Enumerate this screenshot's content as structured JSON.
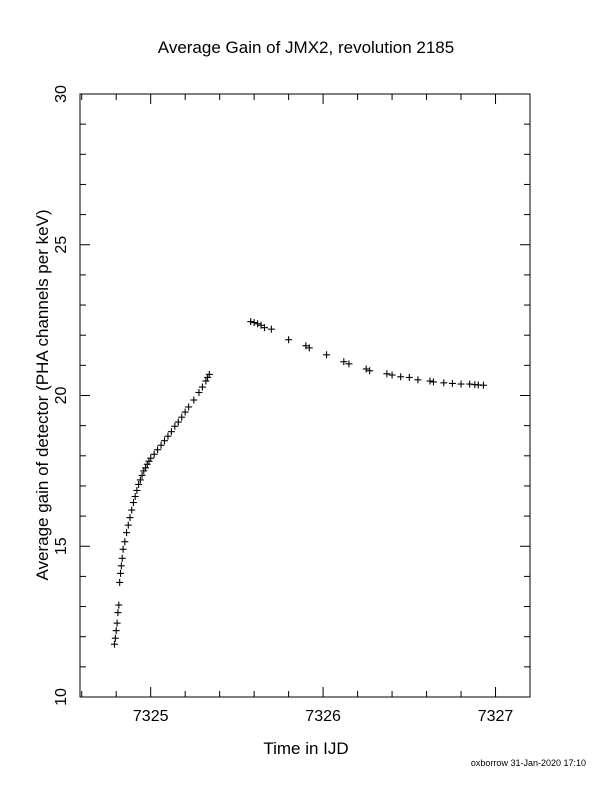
{
  "chart_data": {
    "type": "scatter",
    "title": "Average Gain of JMX2, revolution 2185",
    "xlabel": "Time in IJD",
    "ylabel": "Average gain of detector (PHA channels per keV)",
    "xlim": [
      7324.59,
      7327.2
    ],
    "ylim": [
      10,
      30
    ],
    "x_ticks": [
      7325,
      7326,
      7327
    ],
    "y_ticks": [
      10,
      15,
      20,
      25,
      30
    ],
    "grid": false,
    "marker": "plus",
    "points": [
      [
        7324.79,
        11.75
      ],
      [
        7324.795,
        11.95
      ],
      [
        7324.8,
        12.2
      ],
      [
        7324.805,
        12.45
      ],
      [
        7324.81,
        12.8
      ],
      [
        7324.815,
        13.05
      ],
      [
        7324.82,
        13.8
      ],
      [
        7324.825,
        14.1
      ],
      [
        7324.83,
        14.35
      ],
      [
        7324.835,
        14.6
      ],
      [
        7324.84,
        14.9
      ],
      [
        7324.85,
        15.15
      ],
      [
        7324.86,
        15.45
      ],
      [
        7324.87,
        15.7
      ],
      [
        7324.88,
        15.95
      ],
      [
        7324.89,
        16.2
      ],
      [
        7324.9,
        16.45
      ],
      [
        7324.91,
        16.65
      ],
      [
        7324.92,
        16.85
      ],
      [
        7324.93,
        17.05
      ],
      [
        7324.94,
        17.2
      ],
      [
        7324.95,
        17.35
      ],
      [
        7324.96,
        17.5
      ],
      [
        7324.97,
        17.6
      ],
      [
        7324.98,
        17.72
      ],
      [
        7324.99,
        17.82
      ],
      [
        7325.0,
        17.92
      ],
      [
        7325.02,
        18.05
      ],
      [
        7325.04,
        18.2
      ],
      [
        7325.06,
        18.35
      ],
      [
        7325.08,
        18.5
      ],
      [
        7325.1,
        18.65
      ],
      [
        7325.12,
        18.8
      ],
      [
        7325.14,
        18.98
      ],
      [
        7325.16,
        19.12
      ],
      [
        7325.18,
        19.28
      ],
      [
        7325.2,
        19.45
      ],
      [
        7325.22,
        19.62
      ],
      [
        7325.25,
        19.85
      ],
      [
        7325.28,
        20.1
      ],
      [
        7325.3,
        20.28
      ],
      [
        7325.32,
        20.48
      ],
      [
        7325.33,
        20.6
      ],
      [
        7325.34,
        20.7
      ],
      [
        7325.58,
        22.45
      ],
      [
        7325.6,
        22.42
      ],
      [
        7325.62,
        22.38
      ],
      [
        7325.64,
        22.33
      ],
      [
        7325.66,
        22.25
      ],
      [
        7325.7,
        22.2
      ],
      [
        7325.8,
        21.85
      ],
      [
        7325.9,
        21.65
      ],
      [
        7325.92,
        21.58
      ],
      [
        7326.02,
        21.35
      ],
      [
        7326.12,
        21.12
      ],
      [
        7326.15,
        21.05
      ],
      [
        7326.25,
        20.88
      ],
      [
        7326.27,
        20.82
      ],
      [
        7326.37,
        20.72
      ],
      [
        7326.4,
        20.68
      ],
      [
        7326.45,
        20.62
      ],
      [
        7326.5,
        20.6
      ],
      [
        7326.55,
        20.52
      ],
      [
        7326.62,
        20.48
      ],
      [
        7326.64,
        20.45
      ],
      [
        7326.7,
        20.42
      ],
      [
        7326.75,
        20.4
      ],
      [
        7326.8,
        20.38
      ],
      [
        7326.85,
        20.38
      ],
      [
        7326.88,
        20.36
      ],
      [
        7326.9,
        20.35
      ],
      [
        7326.93,
        20.34
      ]
    ]
  },
  "footer": {
    "credit": "oxborrow 31-Jan-2020 17:10"
  }
}
